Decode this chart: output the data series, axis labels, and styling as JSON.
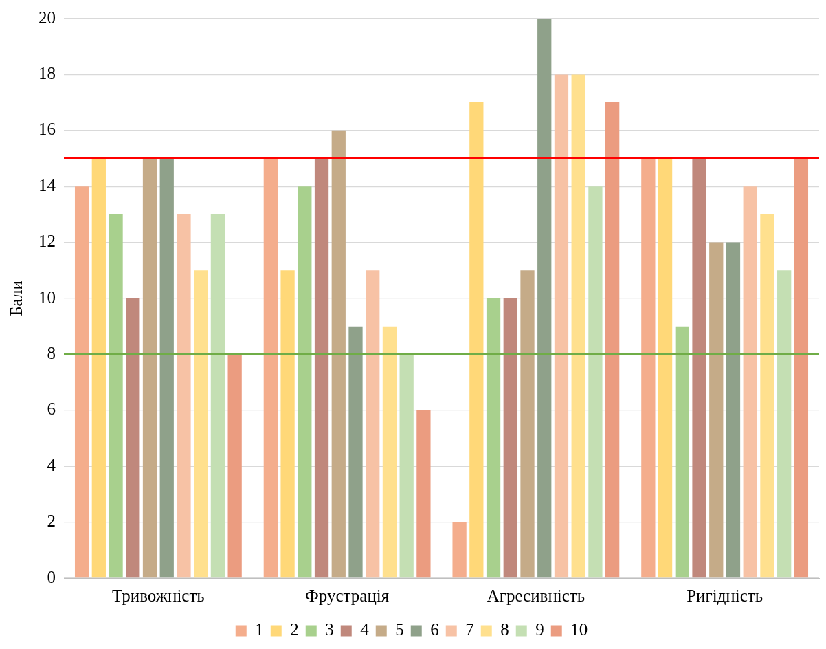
{
  "chart_data": {
    "type": "bar",
    "ylabel": "Бали",
    "categories": [
      "Тривожність",
      "Фрустрація",
      "Агресивність",
      "Ригідність"
    ],
    "series": [
      {
        "name": "1",
        "color": "#f4ad8c",
        "values": [
          14,
          15,
          2,
          15
        ]
      },
      {
        "name": "2",
        "color": "#ffd878",
        "values": [
          15,
          11,
          17,
          15
        ]
      },
      {
        "name": "3",
        "color": "#a8d08d",
        "values": [
          13,
          14,
          10,
          9
        ]
      },
      {
        "name": "4",
        "color": "#c0887c",
        "values": [
          10,
          15,
          10,
          15
        ]
      },
      {
        "name": "5",
        "color": "#c5ab88",
        "values": [
          15,
          16,
          11,
          12
        ]
      },
      {
        "name": "6",
        "color": "#8fa18a",
        "values": [
          15,
          9,
          20,
          12
        ]
      },
      {
        "name": "7",
        "color": "#f7c2a5",
        "values": [
          13,
          11,
          18,
          14
        ]
      },
      {
        "name": "8",
        "color": "#ffe08e",
        "values": [
          11,
          9,
          18,
          13
        ]
      },
      {
        "name": "9",
        "color": "#c4dfb3",
        "values": [
          13,
          8,
          14,
          11
        ]
      },
      {
        "name": "10",
        "color": "#eb9c80",
        "values": [
          8,
          6,
          17,
          15
        ]
      }
    ],
    "ylim": [
      0,
      20
    ],
    "yticks": [
      0,
      2,
      4,
      6,
      8,
      10,
      12,
      14,
      16,
      18,
      20
    ],
    "grid": "y",
    "legend": "bottom",
    "ref_lines": [
      {
        "axis": "y",
        "value": 15,
        "color": "#ff0000"
      },
      {
        "axis": "y",
        "value": 8,
        "color": "#70ad47"
      }
    ]
  }
}
